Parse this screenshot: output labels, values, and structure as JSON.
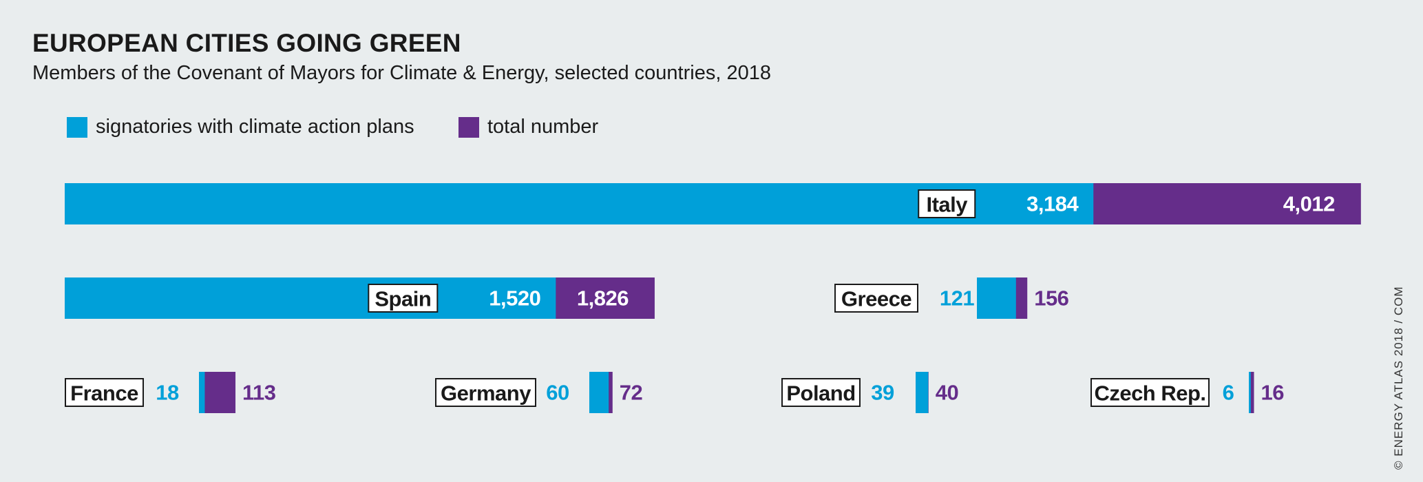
{
  "header": {
    "title": "EUROPEAN CITIES GOING GREEN",
    "subtitle": "Members of the Covenant of Mayors for Climate & Energy, selected countries, 2018"
  },
  "legend": {
    "items": [
      {
        "label": "signatories with climate action plans",
        "color": "#00a0d9"
      },
      {
        "label": "total number",
        "color": "#652d8a"
      }
    ]
  },
  "credit": "© ENERGY ATLAS 2018 / COM",
  "chart_data": {
    "type": "bar",
    "orientation": "horizontal",
    "categories": [
      "Italy",
      "Spain",
      "Greece",
      "France",
      "Germany",
      "Poland",
      "Czech Rep."
    ],
    "series": [
      {
        "name": "signatories with climate action plans",
        "color": "#00a0d9",
        "values": [
          3184,
          1520,
          121,
          18,
          60,
          39,
          6
        ],
        "labels": [
          "3,184",
          "1,520",
          "121",
          "18",
          "60",
          "39",
          "6"
        ]
      },
      {
        "name": "total number",
        "color": "#652d8a",
        "values": [
          4012,
          1826,
          156,
          113,
          72,
          40,
          16
        ],
        "labels": [
          "4,012",
          "1,826",
          "156",
          "113",
          "72",
          "40",
          "16"
        ]
      }
    ],
    "stacking": "overlaid: signatories is a subset of the total",
    "grid": false,
    "legend_position": "top-left"
  }
}
